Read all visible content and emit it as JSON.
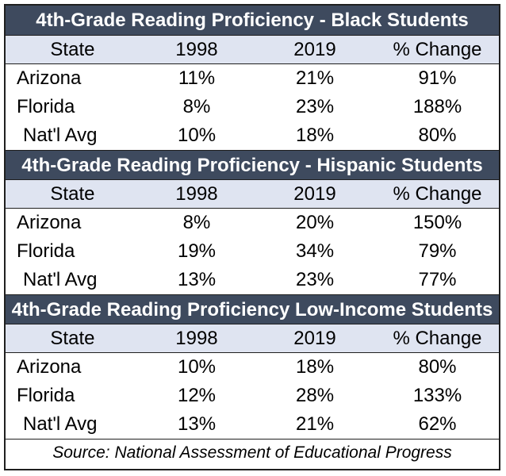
{
  "chart_data": [
    {
      "type": "table",
      "title": "4th-Grade Reading Proficiency - Black Students",
      "columns": [
        "State",
        "1998",
        "2019",
        "% Change"
      ],
      "rows": [
        [
          "Arizona",
          "11%",
          "21%",
          "91%"
        ],
        [
          "Florida",
          "8%",
          "23%",
          "188%"
        ],
        [
          "Nat'l Avg",
          "10%",
          "18%",
          "80%"
        ]
      ]
    },
    {
      "type": "table",
      "title": "4th-Grade Reading Proficiency - Hispanic Students",
      "columns": [
        "State",
        "1998",
        "2019",
        "% Change"
      ],
      "rows": [
        [
          "Arizona",
          "8%",
          "20%",
          "150%"
        ],
        [
          "Florida",
          "19%",
          "34%",
          "79%"
        ],
        [
          "Nat'l Avg",
          "13%",
          "23%",
          "77%"
        ]
      ]
    },
    {
      "type": "table",
      "title": "4th-Grade Reading Proficiency Low-Income Students",
      "columns": [
        "State",
        "1998",
        "2019",
        "% Change"
      ],
      "rows": [
        [
          "Arizona",
          "10%",
          "18%",
          "80%"
        ],
        [
          "Florida",
          "12%",
          "28%",
          "133%"
        ],
        [
          "Nat'l Avg",
          "13%",
          "21%",
          "62%"
        ]
      ]
    }
  ],
  "source": "Source: National Assessment of Educational Progress",
  "colors": {
    "title_bg": "#3e4a5e",
    "header_bg": "#dfe4f1"
  }
}
